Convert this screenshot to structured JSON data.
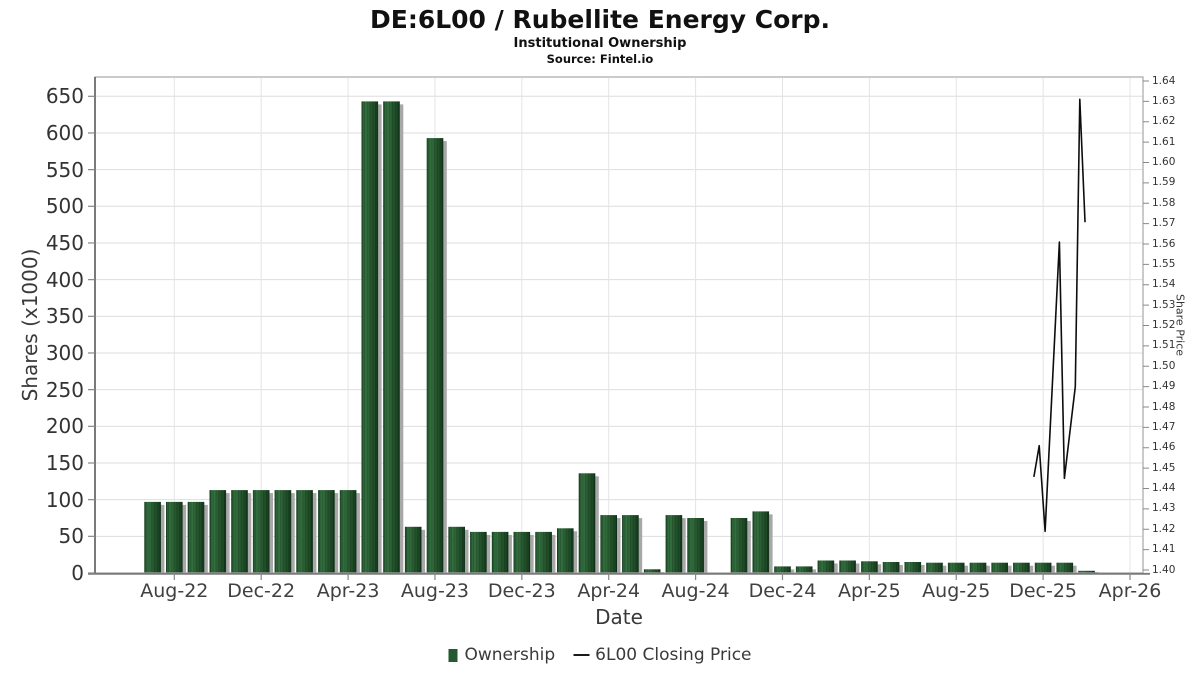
{
  "header": {
    "title": "DE:6L00 / Rubellite Energy Corp.",
    "subtitle": "Institutional Ownership",
    "source": "Source: Fintel.io"
  },
  "legend": {
    "ownership_label": "Ownership",
    "price_label": "6L00 Closing Price"
  },
  "colors": {
    "bar_green": "#255931",
    "bar_gradient": [
      "#14381c",
      "#2b6537",
      "#357041",
      "#27592f",
      "#1d4a26",
      "#12331a"
    ],
    "bar_shadow": "#a8a8a8",
    "price_line": "#0d0d0d",
    "grid_line": "#dedede",
    "plot_border": "#adadad",
    "axis_spine": "#6b6b6b",
    "tick_mark": "#888888"
  },
  "chart_data": {
    "type": "bar",
    "title": "DE:6L00 / Rubellite Energy Corp.",
    "subtitle": "Institutional Ownership",
    "source": "Source: Fintel.io",
    "xlabel": "Date",
    "x_axis": {
      "label": "Date",
      "note": "m = months after Jul-22",
      "ticks": [
        {
          "m": 1,
          "label": "Aug-22"
        },
        {
          "m": 5,
          "label": "Dec-22"
        },
        {
          "m": 9,
          "label": "Apr-23"
        },
        {
          "m": 13,
          "label": "Aug-23"
        },
        {
          "m": 17,
          "label": "Dec-23"
        },
        {
          "m": 21,
          "label": "Apr-24"
        },
        {
          "m": 25,
          "label": "Aug-24"
        },
        {
          "m": 29,
          "label": "Dec-24"
        },
        {
          "m": 33,
          "label": "Apr-25"
        },
        {
          "m": 37,
          "label": "Aug-25"
        },
        {
          "m": 41,
          "label": "Dec-25"
        },
        {
          "m": 45,
          "label": "Apr-26"
        }
      ]
    },
    "left_axis": {
      "label": "Shares (x1000)",
      "min": 0,
      "max": 650,
      "tick_step": 50
    },
    "right_axis": {
      "label": "Share Price",
      "min": 1.4,
      "max": 1.64,
      "tick_step": 0.01
    },
    "grid": true,
    "legend_position": "bottom",
    "series": [
      {
        "name": "Ownership",
        "type": "bar",
        "unit": "thousand shares",
        "points": [
          {
            "month": "Jul-22",
            "m": 0,
            "value": 97
          },
          {
            "month": "Aug-22",
            "m": 1,
            "value": 97
          },
          {
            "month": "Sep-22",
            "m": 2,
            "value": 97
          },
          {
            "month": "Oct-22",
            "m": 3,
            "value": 113
          },
          {
            "month": "Nov-22",
            "m": 4,
            "value": 113
          },
          {
            "month": "Dec-22",
            "m": 5,
            "value": 113
          },
          {
            "month": "Jan-23",
            "m": 6,
            "value": 113
          },
          {
            "month": "Feb-23",
            "m": 7,
            "value": 113
          },
          {
            "month": "Mar-23",
            "m": 8,
            "value": 113
          },
          {
            "month": "Apr-23",
            "m": 9,
            "value": 113
          },
          {
            "month": "May-23",
            "m": 10,
            "value": 643
          },
          {
            "month": "Jun-23",
            "m": 11,
            "value": 643
          },
          {
            "month": "Jul-23",
            "m": 12,
            "value": 63
          },
          {
            "month": "Aug-23",
            "m": 13,
            "value": 593
          },
          {
            "month": "Sep-23",
            "m": 14,
            "value": 63
          },
          {
            "month": "Oct-23",
            "m": 15,
            "value": 56
          },
          {
            "month": "Nov-23",
            "m": 16,
            "value": 56
          },
          {
            "month": "Dec-23",
            "m": 17,
            "value": 56
          },
          {
            "month": "Jan-24",
            "m": 18,
            "value": 56
          },
          {
            "month": "Feb-24",
            "m": 19,
            "value": 61
          },
          {
            "month": "Mar-24",
            "m": 20,
            "value": 136
          },
          {
            "month": "Apr-24",
            "m": 21,
            "value": 79
          },
          {
            "month": "May-24",
            "m": 22,
            "value": 79
          },
          {
            "month": "Jun-24",
            "m": 23,
            "value": 5
          },
          {
            "month": "Jul-24",
            "m": 24,
            "value": 79
          },
          {
            "month": "Aug-24",
            "m": 25,
            "value": 75
          },
          {
            "month": "Sep-24",
            "m": 26,
            "value": 0
          },
          {
            "month": "Oct-24",
            "m": 27,
            "value": 75
          },
          {
            "month": "Nov-24",
            "m": 28,
            "value": 84
          },
          {
            "month": "Dec-24",
            "m": 29,
            "value": 9
          },
          {
            "month": "Jan-25",
            "m": 30,
            "value": 9
          },
          {
            "month": "Feb-25",
            "m": 31,
            "value": 17
          },
          {
            "month": "Mar-25",
            "m": 32,
            "value": 17
          },
          {
            "month": "Apr-25",
            "m": 33,
            "value": 16
          },
          {
            "month": "May-25",
            "m": 34,
            "value": 15
          },
          {
            "month": "Jun-25",
            "m": 35,
            "value": 15
          },
          {
            "month": "Jul-25",
            "m": 36,
            "value": 14
          },
          {
            "month": "Aug-25",
            "m": 37,
            "value": 14
          },
          {
            "month": "Sep-25",
            "m": 38,
            "value": 14
          },
          {
            "month": "Oct-25",
            "m": 39,
            "value": 14
          },
          {
            "month": "Nov-25",
            "m": 40,
            "value": 14
          },
          {
            "month": "Dec-25",
            "m": 41,
            "value": 14
          },
          {
            "month": "Jan-26",
            "m": 42,
            "value": 14
          },
          {
            "month": "Feb-26",
            "m": 43,
            "value": 3
          }
        ]
      },
      {
        "name": "6L00 Closing Price",
        "type": "line",
        "points": [
          {
            "m": 40.58,
            "price": 1.446
          },
          {
            "m": 40.82,
            "price": 1.461
          },
          {
            "m": 41.09,
            "price": 1.419
          },
          {
            "m": 41.75,
            "price": 1.561
          },
          {
            "m": 41.98,
            "price": 1.445
          },
          {
            "m": 42.48,
            "price": 1.49
          },
          {
            "m": 42.69,
            "price": 1.631
          },
          {
            "m": 42.93,
            "price": 1.571
          }
        ]
      }
    ]
  }
}
